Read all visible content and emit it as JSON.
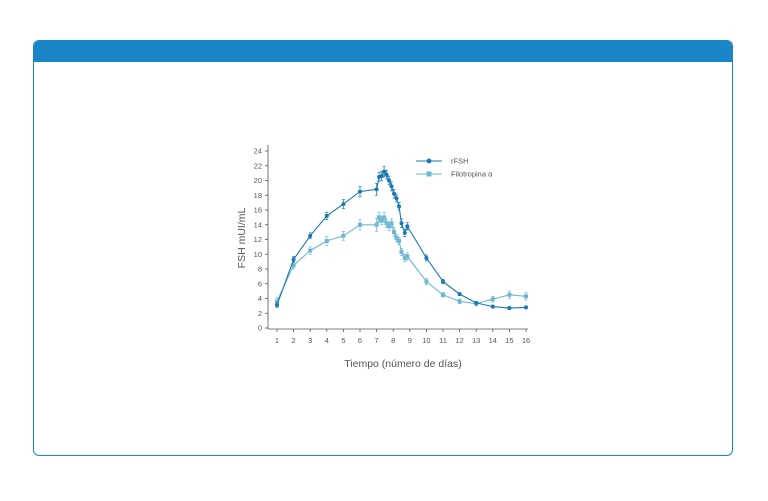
{
  "colors": {
    "accent": "#1b86c7",
    "series_rfsh": "#1a79b0",
    "series_filo": "#6db7d3",
    "axis": "#555555"
  },
  "chart_data": {
    "type": "line",
    "xlabel": "Tiempo (número de días)",
    "ylabel": "FSH mUI/mL",
    "xlim": [
      1,
      16
    ],
    "ylim": [
      0,
      24
    ],
    "xticks": [
      1,
      2,
      3,
      4,
      5,
      6,
      7,
      8,
      9,
      10,
      11,
      12,
      13,
      14,
      15,
      16
    ],
    "yticks": [
      0,
      2,
      4,
      6,
      8,
      10,
      12,
      14,
      16,
      18,
      20,
      22,
      24
    ],
    "grid": false,
    "legend": "top-right",
    "series": [
      {
        "name": "rFSH",
        "marker": "circle",
        "x": [
          1,
          2,
          3,
          4,
          5,
          6,
          7,
          7.15,
          7.3,
          7.45,
          7.6,
          7.75,
          7.9,
          8.05,
          8.2,
          8.35,
          8.5,
          8.7,
          8.85,
          10,
          11,
          12,
          13,
          14,
          15,
          16
        ],
        "y": [
          3.1,
          9.3,
          12.5,
          15.2,
          16.8,
          18.5,
          18.8,
          20.5,
          20.6,
          21.2,
          20.8,
          20.0,
          19.2,
          18.2,
          17.6,
          16.5,
          14.2,
          12.9,
          13.8,
          9.5,
          6.3,
          4.6,
          3.4,
          2.9,
          2.7,
          2.8
        ],
        "err": [
          0.3,
          0.4,
          0.4,
          0.5,
          0.6,
          0.7,
          0.8,
          0.6,
          0.6,
          0.7,
          0.6,
          0.6,
          0.6,
          0.6,
          0.5,
          0.5,
          0.6,
          0.5,
          0.5,
          0.4,
          0.3,
          0.2,
          0.2,
          0.2,
          0.2,
          0.2
        ]
      },
      {
        "name": "Filotropina α",
        "marker": "square",
        "x": [
          1,
          2,
          3,
          4,
          5,
          6,
          7,
          7.15,
          7.3,
          7.45,
          7.6,
          7.75,
          7.9,
          8.05,
          8.2,
          8.35,
          8.5,
          8.7,
          8.85,
          10,
          11,
          12,
          13,
          14,
          15,
          16
        ],
        "y": [
          3.6,
          8.5,
          10.5,
          11.8,
          12.5,
          14.0,
          14.0,
          15.0,
          14.6,
          15.0,
          14.2,
          13.8,
          14.2,
          13.0,
          12.2,
          11.8,
          10.3,
          9.5,
          9.7,
          6.3,
          4.5,
          3.6,
          3.3,
          3.9,
          4.5,
          4.3
        ],
        "err": [
          0.5,
          0.5,
          0.5,
          0.6,
          0.6,
          0.7,
          0.9,
          0.7,
          0.6,
          0.7,
          0.6,
          0.6,
          0.6,
          0.6,
          0.5,
          0.5,
          0.5,
          0.5,
          0.5,
          0.4,
          0.3,
          0.3,
          0.3,
          0.4,
          0.5,
          0.5
        ]
      }
    ]
  }
}
